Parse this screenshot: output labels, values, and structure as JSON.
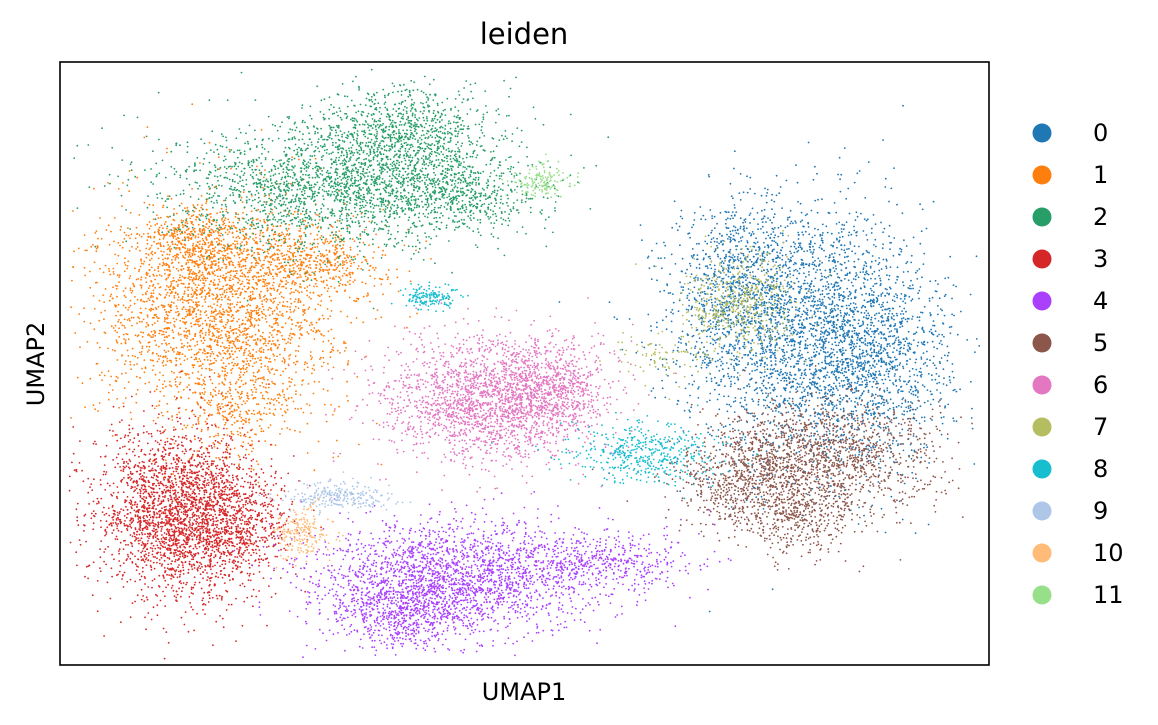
{
  "chart_data": {
    "type": "scatter",
    "title": "leiden",
    "xlabel": "UMAP1",
    "ylabel": "UMAP2",
    "grid": false,
    "ticks": false,
    "legend_position": "right-outside",
    "xlim": [
      0,
      100
    ],
    "ylim": [
      0,
      100
    ],
    "series": [
      {
        "name": "0",
        "color": "#1f77b4",
        "clusters": [
          {
            "cx": 80,
            "cy": 55,
            "sx": 6.5,
            "sy": 11,
            "n": 2600
          },
          {
            "cx": 73,
            "cy": 63,
            "sx": 3.5,
            "sy": 6,
            "n": 700
          },
          {
            "cx": 88,
            "cy": 50,
            "sx": 4,
            "sy": 8,
            "n": 900
          }
        ]
      },
      {
        "name": "1",
        "color": "#ff7f0e",
        "clusters": [
          {
            "cx": 17,
            "cy": 59,
            "sx": 6.5,
            "sy": 9,
            "n": 2600
          },
          {
            "cx": 27,
            "cy": 67,
            "sx": 4,
            "sy": 3,
            "n": 500
          },
          {
            "cx": 15,
            "cy": 70,
            "sx": 3,
            "sy": 3,
            "n": 400
          },
          {
            "cx": 19,
            "cy": 42,
            "sx": 3,
            "sy": 4,
            "n": 250
          }
        ]
      },
      {
        "name": "2",
        "color": "#279e68",
        "clusters": [
          {
            "cx": 30,
            "cy": 79,
            "sx": 9,
            "sy": 5,
            "n": 2100
          },
          {
            "cx": 37,
            "cy": 88,
            "sx": 5,
            "sy": 4,
            "n": 900
          },
          {
            "cx": 43,
            "cy": 78,
            "sx": 4,
            "sy": 3,
            "n": 400
          }
        ]
      },
      {
        "name": "3",
        "color": "#d62728",
        "clusters": [
          {
            "cx": 13,
            "cy": 25,
            "sx": 4.5,
            "sy": 7,
            "n": 2500
          },
          {
            "cx": 19,
            "cy": 23,
            "sx": 3,
            "sy": 4,
            "n": 500
          }
        ]
      },
      {
        "name": "4",
        "color": "#aa40fc",
        "clusters": [
          {
            "cx": 43,
            "cy": 15,
            "sx": 8,
            "sy": 4.5,
            "n": 2000
          },
          {
            "cx": 37,
            "cy": 9,
            "sx": 4,
            "sy": 3.5,
            "n": 700
          },
          {
            "cx": 58,
            "cy": 17,
            "sx": 5,
            "sy": 2.5,
            "n": 400
          }
        ]
      },
      {
        "name": "5",
        "color": "#8c564b",
        "clusters": [
          {
            "cx": 82,
            "cy": 34,
            "sx": 6,
            "sy": 5,
            "n": 1400
          },
          {
            "cx": 74,
            "cy": 30,
            "sx": 4,
            "sy": 4,
            "n": 600
          },
          {
            "cx": 80,
            "cy": 24,
            "sx": 3,
            "sy": 3,
            "n": 300
          }
        ]
      },
      {
        "name": "6",
        "color": "#e377c2",
        "clusters": [
          {
            "cx": 46,
            "cy": 44,
            "sx": 5.5,
            "sy": 5,
            "n": 2000
          },
          {
            "cx": 53,
            "cy": 46,
            "sx": 3,
            "sy": 4,
            "n": 600
          }
        ]
      },
      {
        "name": "7",
        "color": "#b5bd61",
        "clusters": [
          {
            "cx": 73,
            "cy": 60,
            "sx": 3,
            "sy": 4,
            "n": 500
          },
          {
            "cx": 65,
            "cy": 51,
            "sx": 3,
            "sy": 2,
            "n": 80
          }
        ]
      },
      {
        "name": "8",
        "color": "#17becf",
        "clusters": [
          {
            "cx": 63,
            "cy": 35,
            "sx": 4,
            "sy": 2.5,
            "n": 450
          },
          {
            "cx": 40,
            "cy": 61,
            "sx": 1.5,
            "sy": 1.2,
            "n": 150
          }
        ]
      },
      {
        "name": "9",
        "color": "#aec7e8",
        "clusters": [
          {
            "cx": 30,
            "cy": 28,
            "sx": 2.5,
            "sy": 1.3,
            "n": 250
          }
        ]
      },
      {
        "name": "10",
        "color": "#ffbb78",
        "clusters": [
          {
            "cx": 26,
            "cy": 22,
            "sx": 1.5,
            "sy": 2,
            "n": 200
          }
        ]
      },
      {
        "name": "11",
        "color": "#98df8a",
        "clusters": [
          {
            "cx": 52,
            "cy": 80,
            "sx": 1.5,
            "sy": 1.3,
            "n": 150
          }
        ]
      }
    ]
  }
}
